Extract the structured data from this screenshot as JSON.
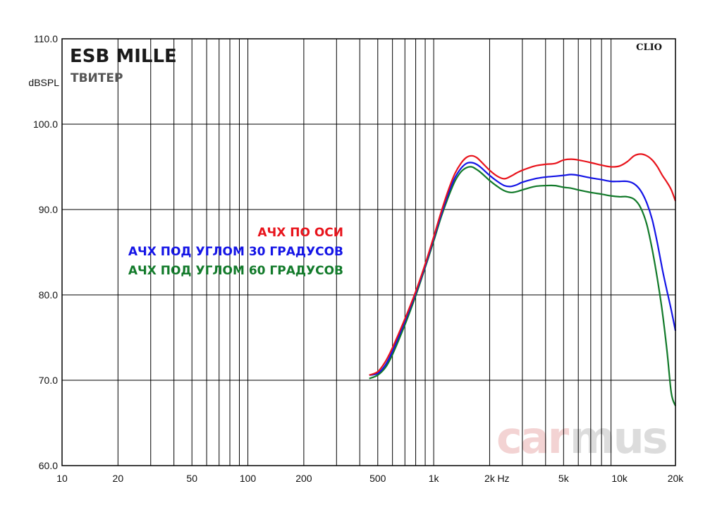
{
  "header": {
    "title": "ESB MILLE",
    "subtitle": "ТВИТЕР",
    "brand": "CLIO",
    "watermark_a": "car",
    "watermark_b": "mus"
  },
  "chart_data": {
    "type": "line",
    "xscale": "log",
    "xlim": [
      10,
      20000
    ],
    "ylim": [
      60,
      110
    ],
    "ylabel": "dBSPL",
    "xunit_label": "Hz",
    "grid": true,
    "y_ticks": [
      {
        "v": 60,
        "label": "60.0"
      },
      {
        "v": 70,
        "label": "70.0"
      },
      {
        "v": 80,
        "label": "80.0"
      },
      {
        "v": 90,
        "label": "90.0"
      },
      {
        "v": 100,
        "label": "100.0"
      },
      {
        "v": 110,
        "label": "110.0"
      }
    ],
    "x_ticks": [
      {
        "v": 10,
        "label": "10"
      },
      {
        "v": 20,
        "label": "20"
      },
      {
        "v": 50,
        "label": "50"
      },
      {
        "v": 100,
        "label": "100"
      },
      {
        "v": 200,
        "label": "200"
      },
      {
        "v": 500,
        "label": "500"
      },
      {
        "v": 1000,
        "label": "1k"
      },
      {
        "v": 2000,
        "label": "2k"
      },
      {
        "v": 5000,
        "label": "5k"
      },
      {
        "v": 10000,
        "label": "10k"
      },
      {
        "v": 20000,
        "label": "20k"
      }
    ],
    "legend_placement": "center-left",
    "series": [
      {
        "name": "АЧХ ПО ОСИ",
        "color": "#e8141c",
        "x": [
          450,
          500,
          550,
          600,
          700,
          800,
          900,
          1000,
          1100,
          1200,
          1300,
          1400,
          1500,
          1600,
          1700,
          1800,
          2000,
          2200,
          2400,
          2600,
          2800,
          3000,
          3500,
          4000,
          4500,
          5000,
          5500,
          6000,
          7000,
          8000,
          9000,
          10000,
          11000,
          12000,
          13000,
          14000,
          15000,
          16000,
          17000,
          18000,
          19000,
          20000
        ],
        "y": [
          70.6,
          71.0,
          72.2,
          73.8,
          77.2,
          80.4,
          83.6,
          86.8,
          89.8,
          92.3,
          94.2,
          95.4,
          96.1,
          96.3,
          96.1,
          95.6,
          94.6,
          93.9,
          93.6,
          93.9,
          94.3,
          94.6,
          95.1,
          95.3,
          95.4,
          95.8,
          95.9,
          95.8,
          95.5,
          95.2,
          95.0,
          95.1,
          95.6,
          96.3,
          96.5,
          96.3,
          95.8,
          95.0,
          94.0,
          93.2,
          92.3,
          91.0
        ]
      },
      {
        "name": "АЧХ ПОД УГЛОМ 30 ГРАДУСОВ",
        "color": "#1414e6",
        "x": [
          450,
          500,
          550,
          600,
          700,
          800,
          900,
          1000,
          1100,
          1200,
          1300,
          1400,
          1500,
          1600,
          1700,
          1800,
          2000,
          2200,
          2400,
          2600,
          2800,
          3000,
          3500,
          4000,
          4500,
          5000,
          5500,
          6000,
          7000,
          8000,
          9000,
          10000,
          11000,
          12000,
          13000,
          14000,
          15000,
          16000,
          17000,
          18000,
          19000,
          20000
        ],
        "y": [
          70.6,
          70.8,
          71.8,
          73.4,
          76.9,
          80.2,
          83.4,
          86.6,
          89.5,
          91.9,
          93.7,
          94.8,
          95.4,
          95.5,
          95.3,
          94.9,
          94.0,
          93.3,
          92.8,
          92.7,
          92.9,
          93.2,
          93.6,
          93.8,
          93.9,
          94.0,
          94.1,
          94.0,
          93.7,
          93.5,
          93.3,
          93.3,
          93.3,
          93.0,
          92.2,
          90.8,
          88.8,
          86.0,
          83.0,
          80.5,
          78.2,
          75.8
        ]
      },
      {
        "name": "АЧХ ПОД УГЛОМ 60 ГРАДУСОВ",
        "color": "#127a2a",
        "x": [
          450,
          500,
          550,
          600,
          700,
          800,
          900,
          1000,
          1100,
          1200,
          1300,
          1400,
          1500,
          1600,
          1700,
          1800,
          2000,
          2200,
          2400,
          2600,
          2800,
          3000,
          3500,
          4000,
          4500,
          5000,
          5500,
          6000,
          7000,
          8000,
          9000,
          10000,
          11000,
          12000,
          13000,
          14000,
          15000,
          16000,
          17000,
          18000,
          19000,
          20000
        ],
        "y": [
          70.2,
          70.6,
          71.5,
          73.0,
          76.5,
          79.9,
          83.2,
          86.3,
          89.2,
          91.5,
          93.3,
          94.4,
          94.9,
          95.0,
          94.7,
          94.3,
          93.4,
          92.7,
          92.2,
          92.0,
          92.1,
          92.3,
          92.7,
          92.8,
          92.8,
          92.6,
          92.5,
          92.3,
          92.0,
          91.8,
          91.6,
          91.5,
          91.5,
          91.2,
          90.2,
          88.3,
          85.3,
          81.8,
          78.0,
          73.5,
          68.5,
          67.0
        ]
      }
    ]
  }
}
